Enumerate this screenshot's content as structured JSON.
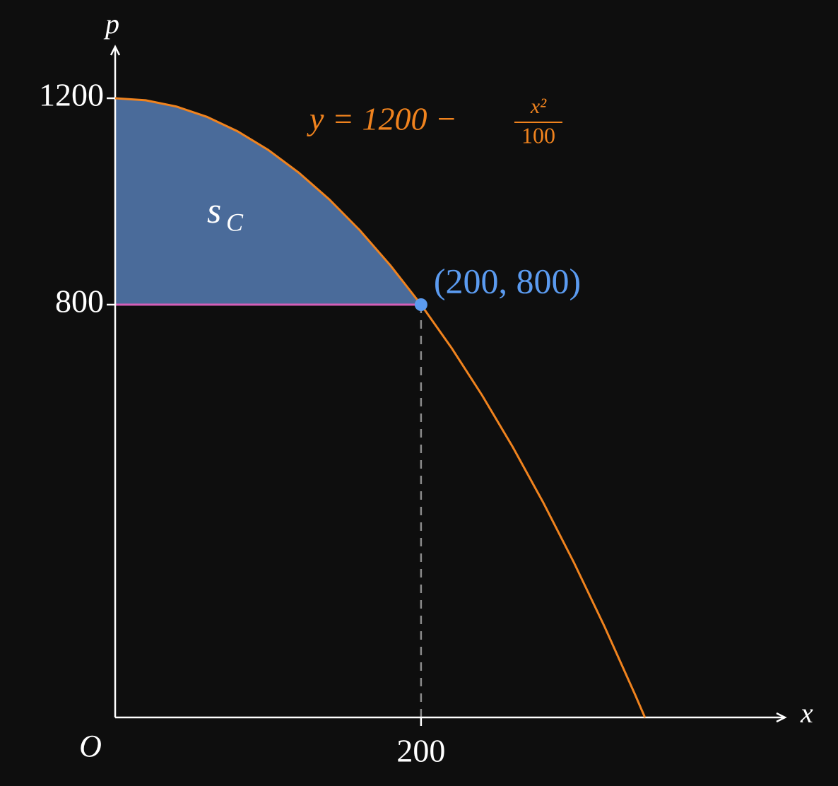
{
  "chart_data": {
    "type": "line",
    "x": [
      0,
      20,
      40,
      60,
      80,
      100,
      120,
      140,
      160,
      180,
      200,
      220,
      240,
      260,
      280,
      300,
      320,
      340,
      346.4
    ],
    "values": [
      1200,
      1196,
      1184,
      1164,
      1136,
      1100,
      1056,
      1004,
      944,
      876,
      800,
      716,
      624,
      524,
      416,
      300,
      176,
      44,
      0
    ],
    "color": "#f0831e",
    "xlim": [
      0,
      438
    ],
    "ylim": [
      0,
      1300
    ],
    "xticks": [
      200
    ],
    "yticks": [
      800,
      1200
    ],
    "x_label": "x",
    "y_label": "p",
    "origin_label": "O",
    "equation": {
      "lhs": "y = 1200 −",
      "numerator": "x²",
      "denominator": "100"
    },
    "area": {
      "color": "#4a6b9a",
      "label_base": "s",
      "label_subscript": "C"
    },
    "level_line_color": "#d45fb8",
    "point": {
      "x": 200,
      "y": 800,
      "label": "(200, 800)",
      "color": "#5b9bf0"
    }
  }
}
